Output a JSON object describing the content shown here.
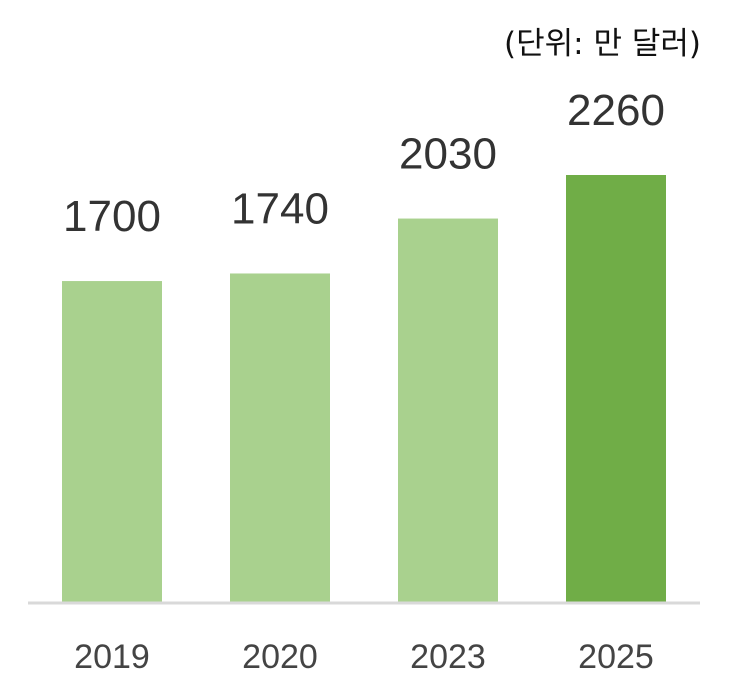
{
  "chart_data": {
    "type": "bar",
    "unit_label": "(단위: 만 달러)",
    "categories": [
      "2019",
      "2020",
      "2023",
      "2025"
    ],
    "values": [
      1700,
      1740,
      2030,
      2260
    ],
    "ylim": [
      0,
      2260
    ],
    "grid": false,
    "legend": "none",
    "colors": {
      "bar": "#a9d18e",
      "highlight": "#70ad47",
      "axis": "#d9d9d9"
    },
    "highlight_index": 3
  }
}
